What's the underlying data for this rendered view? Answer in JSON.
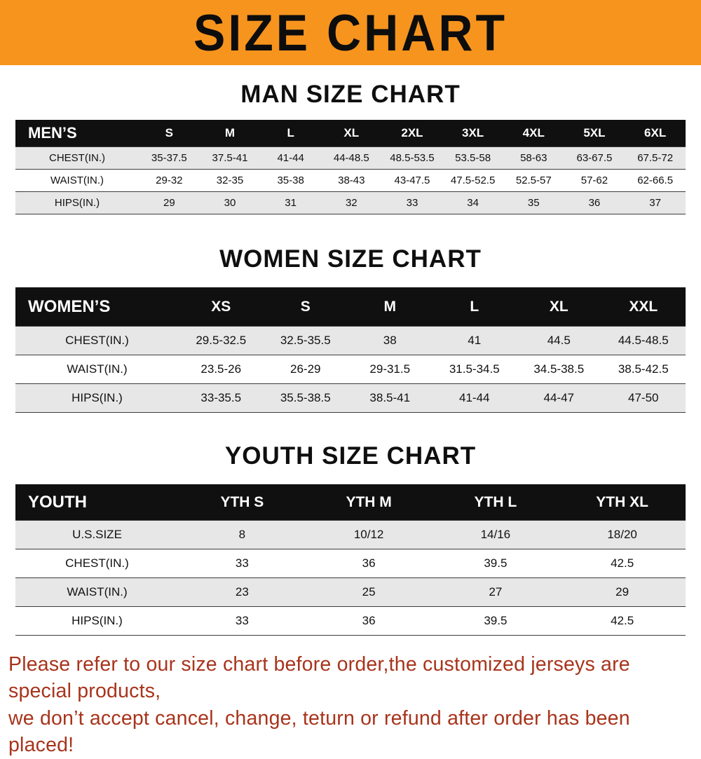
{
  "banner": {
    "title": "SIZE CHART",
    "bg_color": "#f7941e"
  },
  "chart_data": [
    {
      "type": "table",
      "title": "MAN SIZE CHART",
      "header": [
        "MEN’S",
        "S",
        "M",
        "L",
        "XL",
        "2XL",
        "3XL",
        "4XL",
        "5XL",
        "6XL"
      ],
      "rows": [
        [
          "CHEST(IN.)",
          "35-37.5",
          "37.5-41",
          "41-44",
          "44-48.5",
          "48.5-53.5",
          "53.5-58",
          "58-63",
          "63-67.5",
          "67.5-72"
        ],
        [
          "WAIST(IN.)",
          "29-32",
          "32-35",
          "35-38",
          "38-43",
          "43-47.5",
          "47.5-52.5",
          "52.5-57",
          "57-62",
          "62-66.5"
        ],
        [
          "HIPS(IN.)",
          "29",
          "30",
          "31",
          "32",
          "33",
          "34",
          "35",
          "36",
          "37"
        ]
      ]
    },
    {
      "type": "table",
      "title": "WOMEN SIZE CHART",
      "header": [
        "WOMEN’S",
        "XS",
        "S",
        "M",
        "L",
        "XL",
        "XXL"
      ],
      "rows": [
        [
          "CHEST(IN.)",
          "29.5-32.5",
          "32.5-35.5",
          "38",
          "41",
          "44.5",
          "44.5-48.5"
        ],
        [
          "WAIST(IN.)",
          "23.5-26",
          "26-29",
          "29-31.5",
          "31.5-34.5",
          "34.5-38.5",
          "38.5-42.5"
        ],
        [
          "HIPS(IN.)",
          "33-35.5",
          "35.5-38.5",
          "38.5-41",
          "41-44",
          "44-47",
          "47-50"
        ]
      ]
    },
    {
      "type": "table",
      "title": "YOUTH SIZE CHART",
      "header": [
        "YOUTH",
        "YTH S",
        "YTH M",
        "YTH L",
        "YTH XL"
      ],
      "rows": [
        [
          "U.S.SIZE",
          "8",
          "10/12",
          "14/16",
          "18/20"
        ],
        [
          "CHEST(IN.)",
          "33",
          "36",
          "39.5",
          "42.5"
        ],
        [
          "WAIST(IN.)",
          "23",
          "25",
          "27",
          "29"
        ],
        [
          "HIPS(IN.)",
          "33",
          "36",
          "39.5",
          "42.5"
        ]
      ]
    }
  ],
  "footer": {
    "line1": "Please refer to our size chart before order,the customized jerseys are special products,",
    "line2": "we don’t accept cancel, change, teturn or refund after order has been placed!",
    "text_color": "#a8341c"
  }
}
